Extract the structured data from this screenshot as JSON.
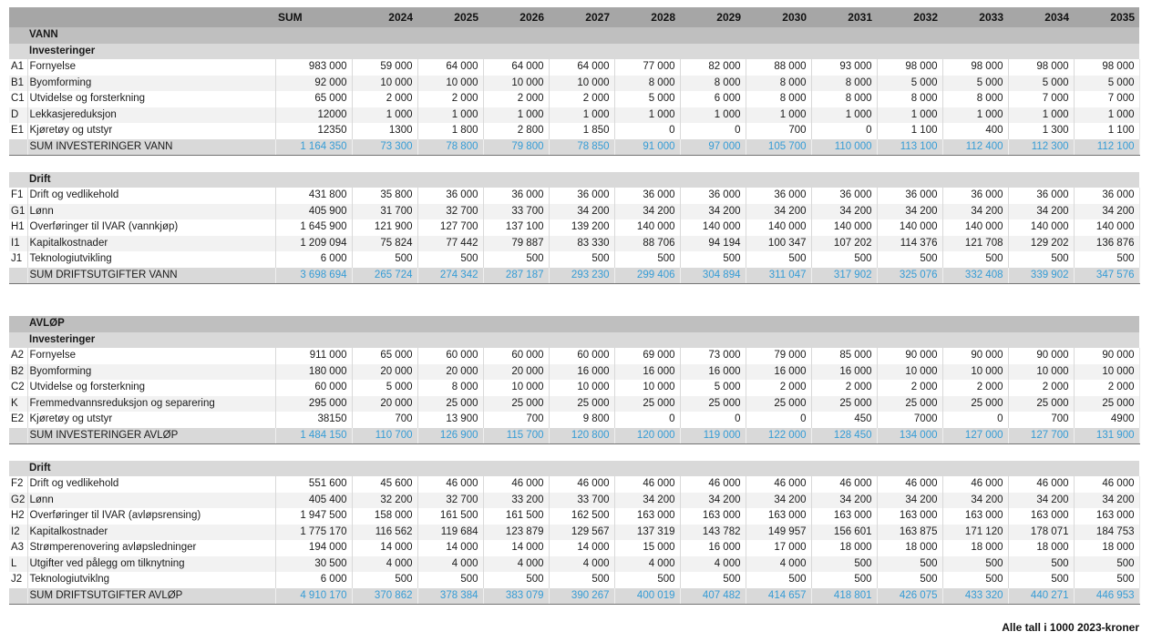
{
  "table": {
    "columns": [
      "SUM",
      "2024",
      "2025",
      "2026",
      "2027",
      "2028",
      "2029",
      "2030",
      "2031",
      "2032",
      "2033",
      "2034",
      "2035"
    ],
    "rows": [
      {
        "type": "section",
        "label": "VANN"
      },
      {
        "type": "subheader",
        "label": "Investeringer"
      },
      {
        "type": "data",
        "band": false,
        "prefix": "A1",
        "label": "Fornyelse",
        "values": [
          "983 000",
          "59 000",
          "64 000",
          "64 000",
          "64 000",
          "77 000",
          "82 000",
          "88 000",
          "93 000",
          "98 000",
          "98 000",
          "98 000",
          "98 000"
        ]
      },
      {
        "type": "data",
        "band": true,
        "prefix": "B1",
        "label": "Byomforming",
        "values": [
          "92 000",
          "10 000",
          "10 000",
          "10 000",
          "10 000",
          "8 000",
          "8 000",
          "8 000",
          "8 000",
          "5 000",
          "5 000",
          "5 000",
          "5 000"
        ]
      },
      {
        "type": "data",
        "band": false,
        "prefix": "C1",
        "label": "Utvidelse og forsterkning",
        "values": [
          "65 000",
          "2 000",
          "2 000",
          "2 000",
          "2 000",
          "5 000",
          "6 000",
          "8 000",
          "8 000",
          "8 000",
          "8 000",
          "7 000",
          "7 000"
        ]
      },
      {
        "type": "data",
        "band": true,
        "prefix": "D",
        "label": "Lekkasjereduksjon",
        "values": [
          "12000",
          "1 000",
          "1 000",
          "1 000",
          "1 000",
          "1 000",
          "1 000",
          "1 000",
          "1 000",
          "1 000",
          "1 000",
          "1 000",
          "1 000"
        ]
      },
      {
        "type": "data",
        "band": false,
        "prefix": "E1",
        "label": "Kjøretøy og utstyr",
        "values": [
          "12350",
          "1300",
          "1 800",
          "2 800",
          "1 850",
          "0",
          "0",
          "700",
          "0",
          "1 100",
          "400",
          "1 300",
          "1 100"
        ]
      },
      {
        "type": "sum",
        "label": "SUM INVESTERINGER VANN",
        "values": [
          "1 164 350",
          "73 300",
          "78 800",
          "79 800",
          "78 850",
          "91 000",
          "97 000",
          "105 700",
          "110 000",
          "113 100",
          "112 400",
          "112 300",
          "112 100"
        ]
      },
      {
        "type": "blank"
      },
      {
        "type": "subheader",
        "label": "Drift"
      },
      {
        "type": "data",
        "band": false,
        "prefix": "F1",
        "label": "Drift og vedlikehold",
        "values": [
          "431 800",
          "35 800",
          "36 000",
          "36 000",
          "36 000",
          "36 000",
          "36 000",
          "36 000",
          "36 000",
          "36 000",
          "36 000",
          "36 000",
          "36 000"
        ]
      },
      {
        "type": "data",
        "band": true,
        "prefix": "G1",
        "label": "Lønn",
        "values": [
          "405 900",
          "31 700",
          "32 700",
          "33 700",
          "34 200",
          "34 200",
          "34 200",
          "34 200",
          "34 200",
          "34 200",
          "34 200",
          "34 200",
          "34 200"
        ]
      },
      {
        "type": "data",
        "band": false,
        "prefix": "H1",
        "label": "Overføringer til IVAR (vannkjøp)",
        "values": [
          "1 645 900",
          "121 900",
          "127 700",
          "137 100",
          "139 200",
          "140 000",
          "140 000",
          "140 000",
          "140 000",
          "140 000",
          "140 000",
          "140 000",
          "140 000"
        ]
      },
      {
        "type": "data",
        "band": true,
        "prefix": "I1",
        "label": "Kapitalkostnader",
        "values": [
          "1 209 094",
          "75 824",
          "77 442",
          "79 887",
          "83 330",
          "88 706",
          "94 194",
          "100 347",
          "107 202",
          "114 376",
          "121 708",
          "129 202",
          "136 876"
        ]
      },
      {
        "type": "data",
        "band": false,
        "prefix": "J1",
        "label": "Teknologiutvikling",
        "values": [
          "6 000",
          "500",
          "500",
          "500",
          "500",
          "500",
          "500",
          "500",
          "500",
          "500",
          "500",
          "500",
          "500"
        ]
      },
      {
        "type": "sum",
        "label": "SUM DRIFTSUTGIFTER VANN",
        "values": [
          "3 698 694",
          "265 724",
          "274 342",
          "287 187",
          "293 230",
          "299 406",
          "304 894",
          "311 047",
          "317 902",
          "325 076",
          "332 408",
          "339 902",
          "347 576"
        ]
      },
      {
        "type": "blank"
      },
      {
        "type": "blank"
      },
      {
        "type": "section",
        "label": "AVLØP"
      },
      {
        "type": "subheader",
        "label": "Investeringer"
      },
      {
        "type": "data",
        "band": false,
        "prefix": "A2",
        "label": "Fornyelse",
        "values": [
          "911 000",
          "65 000",
          "60 000",
          "60 000",
          "60 000",
          "69 000",
          "73 000",
          "79 000",
          "85 000",
          "90 000",
          "90 000",
          "90 000",
          "90 000"
        ]
      },
      {
        "type": "data",
        "band": true,
        "prefix": "B2",
        "label": "Byomforming",
        "values": [
          "180 000",
          "20 000",
          "20 000",
          "20 000",
          "16 000",
          "16 000",
          "16 000",
          "16 000",
          "16 000",
          "10 000",
          "10 000",
          "10 000",
          "10 000"
        ]
      },
      {
        "type": "data",
        "band": false,
        "prefix": "C2",
        "label": "Utvidelse og forsterkning",
        "values": [
          "60 000",
          "5 000",
          "8 000",
          "10 000",
          "10 000",
          "10 000",
          "5 000",
          "2 000",
          "2 000",
          "2 000",
          "2 000",
          "2 000",
          "2 000"
        ]
      },
      {
        "type": "data",
        "band": true,
        "prefix": "K",
        "label": "Fremmedvannsreduksjon og separering",
        "values": [
          "295 000",
          "20 000",
          "25 000",
          "25 000",
          "25 000",
          "25 000",
          "25 000",
          "25 000",
          "25 000",
          "25 000",
          "25 000",
          "25 000",
          "25 000"
        ]
      },
      {
        "type": "data",
        "band": false,
        "prefix": "E2",
        "label": "Kjøretøy og utstyr",
        "values": [
          "38150",
          "700",
          "13 900",
          "700",
          "9 800",
          "0",
          "0",
          "0",
          "450",
          "7000",
          "0",
          "700",
          "4900"
        ]
      },
      {
        "type": "sum",
        "label": "SUM INVESTERINGER AVLØP",
        "values": [
          "1 484 150",
          "110 700",
          "126 900",
          "115 700",
          "120 800",
          "120 000",
          "119 000",
          "122 000",
          "128 450",
          "134 000",
          "127 000",
          "127 700",
          "131 900"
        ]
      },
      {
        "type": "blank"
      },
      {
        "type": "subheader",
        "label": "Drift"
      },
      {
        "type": "data",
        "band": false,
        "prefix": "F2",
        "label": "Drift og vedlikehold",
        "values": [
          "551 600",
          "45 600",
          "46 000",
          "46 000",
          "46 000",
          "46 000",
          "46 000",
          "46 000",
          "46 000",
          "46 000",
          "46 000",
          "46 000",
          "46 000"
        ]
      },
      {
        "type": "data",
        "band": true,
        "prefix": "G2",
        "label": "Lønn",
        "values": [
          "405 400",
          "32 200",
          "32 700",
          "33 200",
          "33 700",
          "34 200",
          "34 200",
          "34 200",
          "34 200",
          "34 200",
          "34 200",
          "34 200",
          "34 200"
        ]
      },
      {
        "type": "data",
        "band": false,
        "prefix": "H2",
        "label": "Overføringer til IVAR (avløpsrensing)",
        "values": [
          "1 947 500",
          "158 000",
          "161 500",
          "161 500",
          "162 500",
          "163 000",
          "163 000",
          "163 000",
          "163 000",
          "163 000",
          "163 000",
          "163 000",
          "163 000"
        ]
      },
      {
        "type": "data",
        "band": true,
        "prefix": "I2",
        "label": "Kapitalkostnader",
        "values": [
          "1 775 170",
          "116 562",
          "119 684",
          "123 879",
          "129 567",
          "137 319",
          "143 782",
          "149 957",
          "156 601",
          "163 875",
          "171 120",
          "178 071",
          "184 753"
        ]
      },
      {
        "type": "data",
        "band": false,
        "prefix": "A3",
        "label": "Strømperenovering avløpsledninger",
        "values": [
          "194 000",
          "14 000",
          "14 000",
          "14 000",
          "14 000",
          "15 000",
          "16 000",
          "17 000",
          "18 000",
          "18 000",
          "18 000",
          "18 000",
          "18 000"
        ]
      },
      {
        "type": "data",
        "band": true,
        "prefix": "L",
        "label": "Utgifter ved pålegg om tilknytning",
        "values": [
          "30 500",
          "4 000",
          "4 000",
          "4 000",
          "4 000",
          "4 000",
          "4 000",
          "4 000",
          "500",
          "500",
          "500",
          "500",
          "500"
        ]
      },
      {
        "type": "data",
        "band": false,
        "prefix": "J2",
        "label": "Teknologiutviklng",
        "values": [
          "6 000",
          "500",
          "500",
          "500",
          "500",
          "500",
          "500",
          "500",
          "500",
          "500",
          "500",
          "500",
          "500"
        ]
      },
      {
        "type": "sum",
        "label": "SUM DRIFTSUTGIFTER AVLØP",
        "values": [
          "4 910 170",
          "370 862",
          "378 384",
          "383 079",
          "390 267",
          "400 019",
          "407 482",
          "414 657",
          "418 801",
          "426 075",
          "433 320",
          "440 271",
          "446 953"
        ]
      }
    ]
  },
  "footnote": "Alle tall i 1000 2023-kroner",
  "colors": {
    "accent_blue": "#359CD6",
    "header_gray": "#A6A6A6",
    "section_gray": "#BFBFBF",
    "subheader_gray": "#D9D9D9",
    "band_gray": "#F2F2F2"
  }
}
